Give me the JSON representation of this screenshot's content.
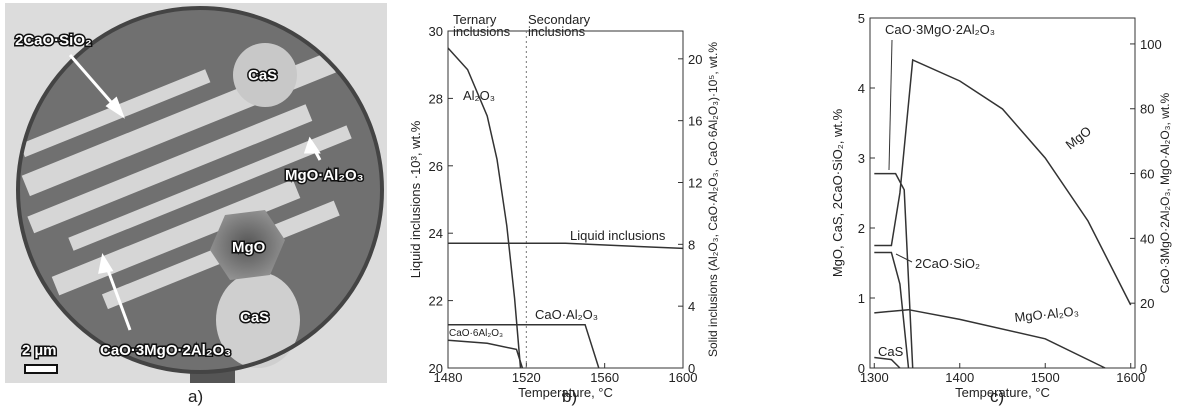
{
  "micrograph": {
    "panel_label": "a)",
    "scale_bar": "2 µm",
    "labels": [
      "2CaO·SiO₂",
      "CaS",
      "MgO·Al₂O₃",
      "MgO",
      "CaS",
      "CaO·3MgO·2Al₂O₃"
    ]
  },
  "chart_data": [
    {
      "type": "line",
      "panel_label": "b)",
      "xlabel": "Temperature, °C",
      "ylabel": "Liquid inclusions ·10³, wt.%",
      "y2label": "Solid inclusions (Al₂O₃, CaO·Al₂O₃, CaO·6Al₂O₃)·10⁵, wt.%",
      "xlim": [
        1480,
        1600
      ],
      "xticks": [
        1480,
        1520,
        1560,
        1600
      ],
      "ylim": [
        20,
        30
      ],
      "yticks": [
        20,
        22,
        24,
        26,
        28,
        30
      ],
      "y2lim": [
        0,
        21.8
      ],
      "y2ticks": [
        0,
        4,
        8,
        12,
        16,
        20
      ],
      "vline": 1520,
      "annotations": [
        "Ternary inclusions",
        "Secondary inclusions"
      ],
      "series": [
        {
          "name": "Al₂O₃",
          "color": "#333333",
          "axis": "y2",
          "x": [
            1480,
            1490,
            1500,
            1505,
            1510,
            1514,
            1517
          ],
          "values": [
            20.7,
            19.3,
            16.3,
            13.5,
            9.2,
            4.5,
            0
          ]
        },
        {
          "name": "Liquid inclusions",
          "color": "#333333",
          "x": [
            1480,
            1540,
            1600
          ],
          "values": [
            23.7,
            23.7,
            23.55
          ]
        },
        {
          "name": "CaO·Al₂O₃",
          "color": "#333333",
          "axis": "y2",
          "x": [
            1480,
            1550,
            1557
          ],
          "values": [
            2.8,
            2.8,
            0
          ]
        },
        {
          "name": "CaO·6Al₂O₃",
          "color": "#333333",
          "axis": "y2",
          "x": [
            1480,
            1500,
            1515,
            1518
          ],
          "values": [
            1.8,
            1.6,
            1.2,
            0
          ]
        }
      ]
    },
    {
      "type": "line",
      "panel_label": "c)",
      "xlabel": "Temperature, °C",
      "ylabel": "MgO, CaS, 2CaO·SiO₂, wt.%",
      "y2label": "CaO·3MgO·2Al₂O₃, MgO·Al₂O₃, wt.%",
      "xlim": [
        1295,
        1605
      ],
      "xticks": [
        1300,
        1400,
        1500,
        1600
      ],
      "ylim": [
        0,
        5
      ],
      "yticks": [
        0,
        1,
        2,
        3,
        4,
        5
      ],
      "y2lim": [
        0,
        108
      ],
      "y2ticks": [
        0,
        20,
        40,
        60,
        80,
        100
      ],
      "series": [
        {
          "name": "CaO·3MgO·2Al₂O₃",
          "color": "#333333",
          "axis": "y2",
          "x": [
            1300,
            1325,
            1335,
            1345
          ],
          "values": [
            60,
            60,
            55,
            0
          ]
        },
        {
          "name": "MgO",
          "color": "#333333",
          "x": [
            1300,
            1320,
            1330,
            1345,
            1400,
            1450,
            1500,
            1550,
            1600
          ],
          "values": [
            1.75,
            1.75,
            2.5,
            4.4,
            4.1,
            3.7,
            3.0,
            2.1,
            0.9
          ]
        },
        {
          "name": "2CaO·SiO₂",
          "color": "#333333",
          "x": [
            1300,
            1320,
            1330,
            1340
          ],
          "values": [
            1.65,
            1.65,
            1.2,
            0
          ]
        },
        {
          "name": "MgO·Al₂O₃",
          "color": "#333333",
          "axis": "y2",
          "x": [
            1300,
            1340,
            1400,
            1500,
            1570
          ],
          "values": [
            17,
            18,
            15,
            9,
            0
          ]
        },
        {
          "name": "CaS",
          "color": "#333333",
          "x": [
            1300,
            1320,
            1330
          ],
          "values": [
            0.15,
            0.12,
            0
          ]
        }
      ]
    }
  ]
}
